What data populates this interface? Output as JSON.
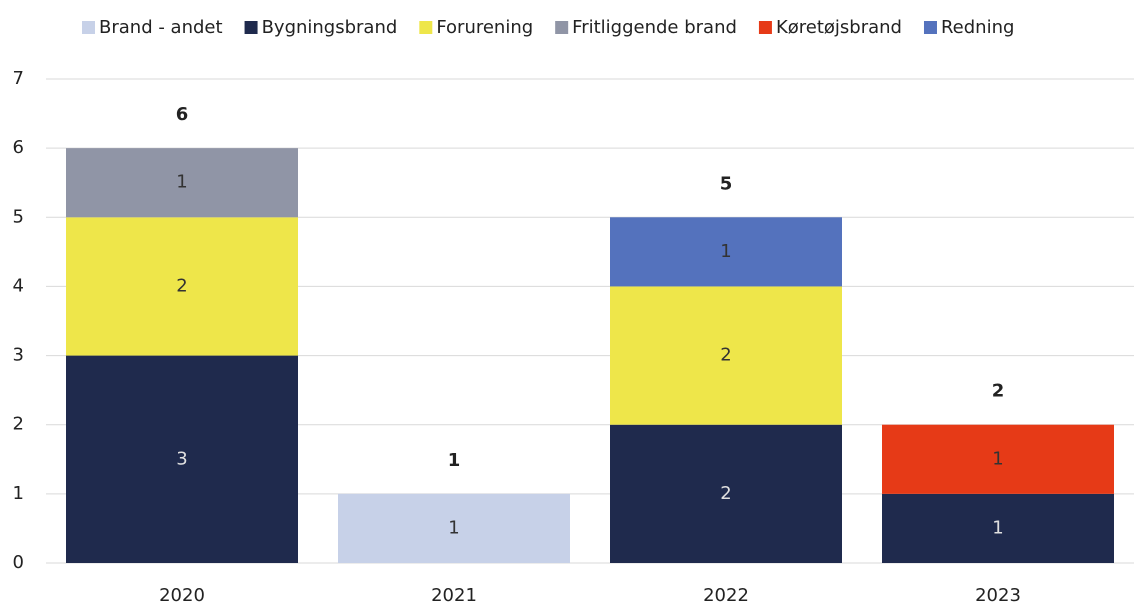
{
  "chart_data": {
    "type": "stacked_bar",
    "categories": [
      "2020",
      "2021",
      "2022",
      "2023"
    ],
    "series": [
      {
        "name": "Brand - andet",
        "color": "#c7d1e8",
        "values": [
          null,
          1,
          null,
          null
        ]
      },
      {
        "name": "Bygningsbrand",
        "color": "#1f2a4d",
        "values": [
          3,
          null,
          2,
          1
        ]
      },
      {
        "name": "Forurening",
        "color": "#eee64a",
        "values": [
          2,
          null,
          2,
          null
        ]
      },
      {
        "name": "Fritliggende brand",
        "color": "#9095a6",
        "values": [
          1,
          null,
          null,
          null
        ]
      },
      {
        "name": "Køretøjsbrand",
        "color": "#e63a17",
        "values": [
          null,
          null,
          null,
          1
        ]
      },
      {
        "name": "Redning",
        "color": "#5472bd",
        "values": [
          null,
          null,
          1,
          null
        ]
      }
    ],
    "totals": [
      6,
      1,
      5,
      2
    ],
    "ylim": [
      0,
      7
    ],
    "yticks": [
      0,
      1,
      2,
      3,
      4,
      5,
      6,
      7
    ],
    "grid": true,
    "legend": "top"
  }
}
